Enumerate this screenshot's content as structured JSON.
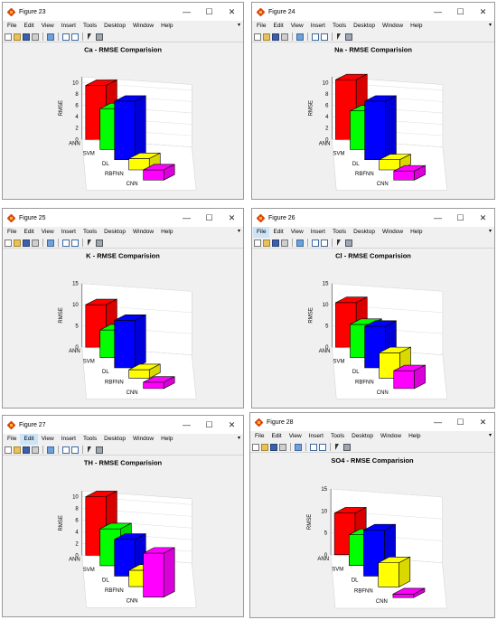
{
  "menu": [
    "File",
    "Edit",
    "View",
    "Insert",
    "Tools",
    "Desktop",
    "Window",
    "Help"
  ],
  "colors": {
    "ANN": "#ff0000",
    "SVM": "#00ff00",
    "DL": "#0000ff",
    "RBFNN": "#ffff00",
    "CNN": "#ff00ff"
  },
  "figures": [
    {
      "title_bar": "Figure 23",
      "plot_title": "Ca - RMSE Comparision",
      "highlight_menu": "",
      "chart_data": {
        "type": "bar",
        "title": "Ca - RMSE Comparision",
        "ylabel": "RMSE",
        "categories": [
          "ANN",
          "SVM",
          "DL",
          "RBFNN",
          "CNN"
        ],
        "values": [
          9.5,
          7.2,
          10.3,
          2.0,
          1.8
        ],
        "yticks": [
          0,
          2,
          4,
          6,
          8,
          10
        ],
        "ylim": [
          0,
          11
        ]
      }
    },
    {
      "title_bar": "Figure 24",
      "plot_title": "Na - RMSE Comparision",
      "highlight_menu": "",
      "chart_data": {
        "type": "bar",
        "title": "Na - RMSE Comparision",
        "ylabel": "RMSE",
        "categories": [
          "ANN",
          "SVM",
          "DL",
          "RBFNN",
          "CNN"
        ],
        "values": [
          10.5,
          6.8,
          10.3,
          1.8,
          1.6
        ],
        "yticks": [
          0,
          2,
          4,
          6,
          8,
          10
        ],
        "ylim": [
          0,
          11
        ]
      }
    },
    {
      "title_bar": "Figure 25",
      "plot_title": "K - RMSE Comparision",
      "highlight_menu": "",
      "chart_data": {
        "type": "bar",
        "title": "K - RMSE Comparision",
        "ylabel": "RMSE",
        "categories": [
          "ANN",
          "SVM",
          "DL",
          "RBFNN",
          "CNN"
        ],
        "values": [
          10.0,
          6.5,
          11.2,
          2.0,
          1.5
        ],
        "yticks": [
          0,
          5,
          10,
          15
        ],
        "ylim": [
          0,
          15
        ]
      }
    },
    {
      "title_bar": "Figure 26",
      "plot_title": "Cl - RMSE Comparision",
      "highlight_menu": "File",
      "chart_data": {
        "type": "bar",
        "title": "Cl - RMSE Comparision",
        "ylabel": "RMSE",
        "categories": [
          "ANN",
          "SVM",
          "DL",
          "RBFNN",
          "CNN"
        ],
        "values": [
          10.5,
          7.8,
          9.8,
          6.0,
          4.2
        ],
        "yticks": [
          0,
          5,
          10,
          15
        ],
        "ylim": [
          0,
          15
        ]
      }
    },
    {
      "title_bar": "Figure 27",
      "plot_title": "TH - RMSE Comparision",
      "highlight_menu": "Edit",
      "chart_data": {
        "type": "bar",
        "title": "TH - RMSE Comparision",
        "ylabel": "RMSE",
        "categories": [
          "ANN",
          "SVM",
          "DL",
          "RBFNN",
          "CNN"
        ],
        "values": [
          10.0,
          6.3,
          6.3,
          2.8,
          7.5
        ],
        "yticks": [
          0,
          2,
          4,
          6,
          8,
          10
        ],
        "ylim": [
          0,
          11
        ]
      }
    },
    {
      "title_bar": "Figure 28",
      "plot_title": "SO4 - RMSE Comparision",
      "highlight_menu": "",
      "chart_data": {
        "type": "bar",
        "title": "SO4 - RMSE Comparision",
        "ylabel": "RMSE",
        "categories": [
          "ANN",
          "SVM",
          "DL",
          "RBFNN",
          "CNN"
        ],
        "values": [
          9.5,
          7.0,
          10.5,
          5.5,
          0.8
        ],
        "yticks": [
          0,
          5,
          10,
          15
        ],
        "ylim": [
          0,
          15
        ]
      }
    }
  ]
}
